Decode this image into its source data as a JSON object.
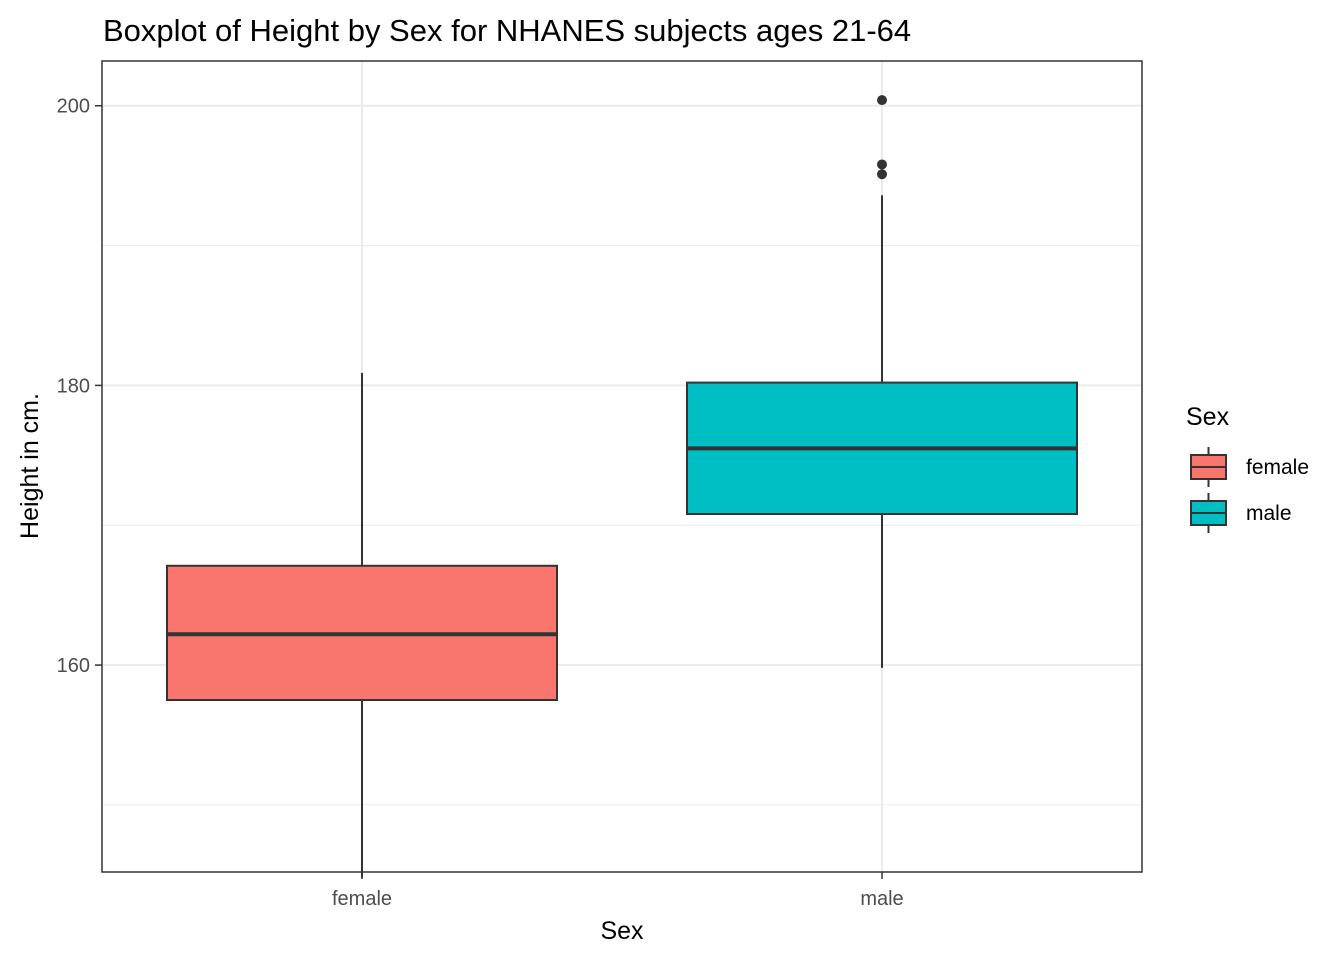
{
  "chart_data": {
    "type": "boxplot",
    "title": "Boxplot of Height by Sex for NHANES subjects ages 21-64",
    "xlabel": "Sex",
    "ylabel": "Height in cm.",
    "categories": [
      "female",
      "male"
    ],
    "ylim": [
      145.2,
      203.2
    ],
    "yticks": [
      160,
      180,
      200
    ],
    "y_minor_ticks": [
      150,
      170,
      190
    ],
    "grid": true,
    "legend": {
      "title": "Sex",
      "position": "right",
      "entries": [
        "female",
        "male"
      ]
    },
    "series": [
      {
        "name": "female",
        "color": "#F8766D",
        "whisker_low": 144.8,
        "q1": 157.5,
        "median": 162.2,
        "q3": 167.1,
        "whisker_high": 180.9,
        "outliers": []
      },
      {
        "name": "male",
        "color": "#00BFC4",
        "whisker_low": 159.8,
        "q1": 170.8,
        "median": 175.5,
        "q3": 180.2,
        "whisker_high": 193.6,
        "outliers": [
          195.1,
          195.8,
          200.4
        ]
      }
    ]
  }
}
